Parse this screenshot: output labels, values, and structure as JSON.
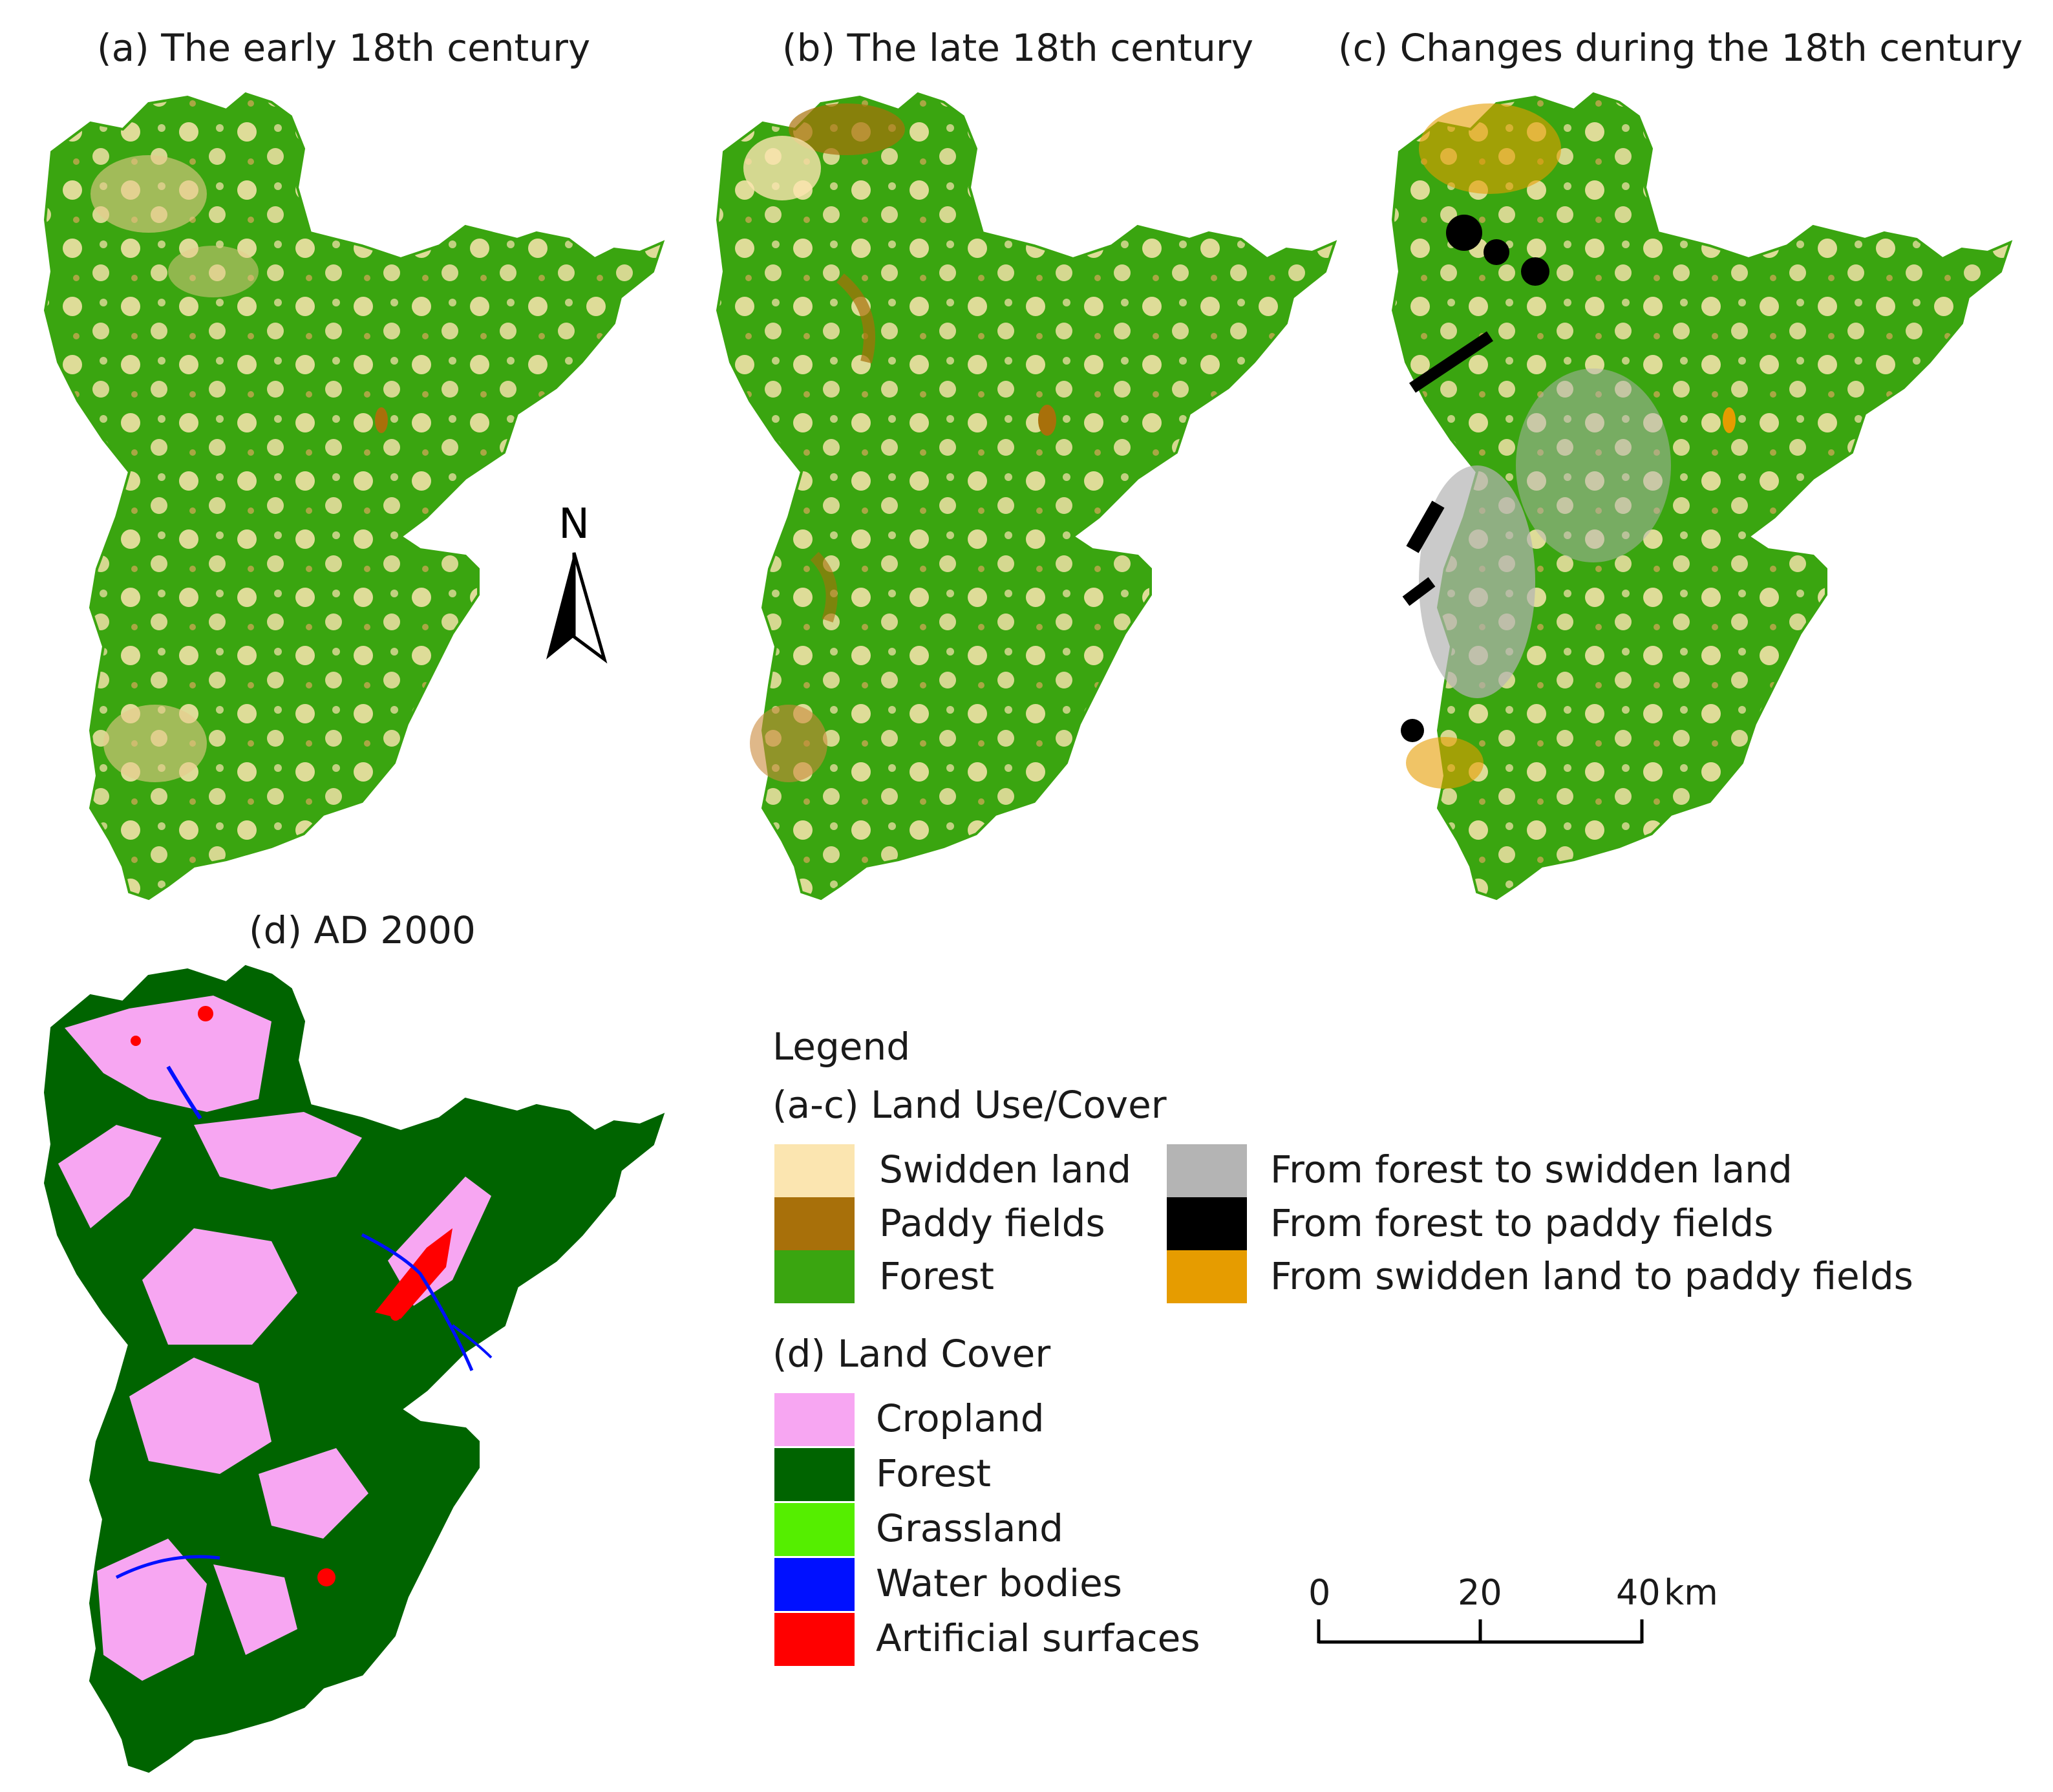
{
  "panels": [
    {
      "id": "a",
      "title": "(a) The early 18th century"
    },
    {
      "id": "b",
      "title": "(b) The late 18th century"
    },
    {
      "id": "c",
      "title": "(c) Changes during the 18th century"
    },
    {
      "id": "d",
      "title": "(d) AD 2000"
    }
  ],
  "north_arrow": {
    "label": "N"
  },
  "legend": {
    "title": "Legend",
    "section_ac": {
      "title": "(a-c) Land Use/Cover",
      "items": [
        {
          "label": "Swidden land",
          "color": "#fbe5b0"
        },
        {
          "label": "Paddy fields",
          "color": "#a8700a"
        },
        {
          "label": "Forest",
          "color": "#3aa510"
        },
        {
          "label": "From forest to swidden land",
          "color": "#b4b4b4"
        },
        {
          "label": "From forest to paddy fields",
          "color": "#000000"
        },
        {
          "label": "From swidden land to paddy fields",
          "color": "#e69c00"
        }
      ]
    },
    "section_d": {
      "title": "(d) Land Cover",
      "items": [
        {
          "label": "Cropland",
          "color": "#f7a6f2"
        },
        {
          "label": "Forest",
          "color": "#006400"
        },
        {
          "label": "Grassland",
          "color": "#55ee00"
        },
        {
          "label": "Water bodies",
          "color": "#0010ff"
        },
        {
          "label": "Artificial surfaces",
          "color": "#ff0000"
        }
      ]
    }
  },
  "scale_bar": {
    "ticks": [
      "0",
      "20",
      "40"
    ],
    "unit": "km"
  }
}
